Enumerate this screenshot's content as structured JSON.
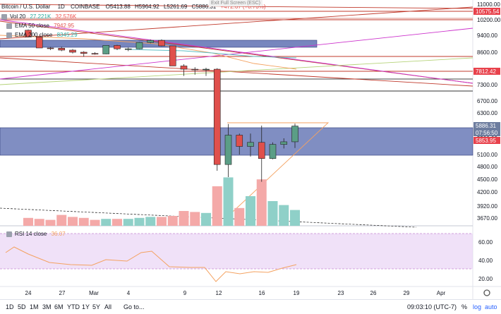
{
  "header": {
    "symbol": "Bitcoin / U.S. Dollar",
    "interval": "1D",
    "exchange": "COINBASE",
    "o": "O5413.88",
    "h": "H5964.92",
    "l": "L5261.69",
    "c": "C5886.31",
    "change": "+472.67 (+8.73%)",
    "exit_full_screen": "Exit Full Screen (ESC)"
  },
  "legends": {
    "vol": {
      "label": "Vol 20",
      "v1": "27.221K",
      "v2": "32.576K"
    },
    "ema50": {
      "label": "EMA 50 close",
      "value": "7942.95"
    },
    "ema200": {
      "label": "EMA 200 close",
      "value": "8345.29"
    },
    "rsi": {
      "label": "RSI 14 close",
      "value": "36.07"
    }
  },
  "price_axis": {
    "ticks": [
      "11000.00",
      "10200.00",
      "9400.00",
      "8600.00",
      "7300.00",
      "6700.00",
      "6300.00",
      "5500.00",
      "5100.00",
      "4800.00",
      "4500.00",
      "4200.00",
      "3920.00",
      "3670.00"
    ],
    "badges": [
      {
        "text": "10575.54",
        "color": "#e8414b"
      },
      {
        "text": "7812.42",
        "color": "#e8414b"
      },
      {
        "text": "5886.31",
        "color": "#6d7d9f"
      },
      {
        "text": "07:56:50",
        "color": "#6d7d9f"
      },
      {
        "text": "5853.95",
        "color": "#e8414b"
      }
    ]
  },
  "rsi_axis": {
    "ticks": [
      "60.00",
      "40.00",
      "20.00"
    ]
  },
  "time_axis": {
    "labels": [
      "24",
      "27",
      "Mar",
      "4",
      "9",
      "12",
      "16",
      "19",
      "23",
      "26",
      "29",
      "Apr"
    ]
  },
  "bottom_bar": {
    "ranges": [
      "1D",
      "5D",
      "1M",
      "3M",
      "6M",
      "YTD",
      "1Y",
      "5Y",
      "All"
    ],
    "goto": "Go to...",
    "clock": "09:03:10 (UTC-7)",
    "percent": "%",
    "log": "log",
    "auto": "auto"
  },
  "colors": {
    "up": "#5b9e86",
    "down": "#e0504c",
    "zone": "#4a5ea8",
    "rsi_band": "#ead4f5",
    "orange": "#f4a261"
  },
  "chart_data": {
    "type": "candlestick",
    "dates": [
      "Feb 24",
      "Feb 25",
      "Feb 26",
      "Feb 27",
      "Feb 28",
      "Feb 29",
      "Mar 1",
      "Mar 2",
      "Mar 3",
      "Mar 4",
      "Mar 5",
      "Mar 6",
      "Mar 7",
      "Mar 8",
      "Mar 9",
      "Mar 10",
      "Mar 11",
      "Mar 12",
      "Mar 13",
      "Mar 14",
      "Mar 15",
      "Mar 16",
      "Mar 17",
      "Mar 18",
      "Mar 19"
    ],
    "open": [
      9660,
      9320,
      8800,
      8790,
      8700,
      8600,
      8550,
      8530,
      8920,
      8760,
      8760,
      9060,
      9160,
      8900,
      8050,
      7920,
      7900,
      7920,
      4850,
      5600,
      5300,
      5400,
      5000,
      5350,
      5413.88
    ],
    "high": [
      9700,
      9350,
      8850,
      8860,
      8750,
      8650,
      8600,
      8900,
      8950,
      8820,
      9080,
      9200,
      9210,
      8900,
      8120,
      8000,
      7980,
      7960,
      5950,
      5650,
      5650,
      5900,
      5400,
      5500,
      5964.92
    ],
    "low": [
      9300,
      8800,
      8700,
      8650,
      8550,
      8420,
      8500,
      8520,
      8700,
      8650,
      8740,
      9020,
      8880,
      8050,
      7650,
      7700,
      7650,
      4700,
      4550,
      5100,
      5050,
      4440,
      4980,
      5250,
      5261.69
    ],
    "close": [
      9320,
      8800,
      8790,
      8700,
      8600,
      8550,
      8530,
      8920,
      8760,
      8760,
      9060,
      9160,
      8900,
      8050,
      7920,
      7900,
      7920,
      4850,
      5600,
      5300,
      5400,
      5000,
      5350,
      5413.88,
      5886.31
    ],
    "volume": [
      8,
      7,
      6,
      11,
      9,
      8,
      6,
      7,
      7,
      7,
      8,
      9,
      9,
      10,
      15,
      14,
      13,
      40,
      49,
      18,
      30,
      47,
      25,
      21,
      16
    ]
  }
}
